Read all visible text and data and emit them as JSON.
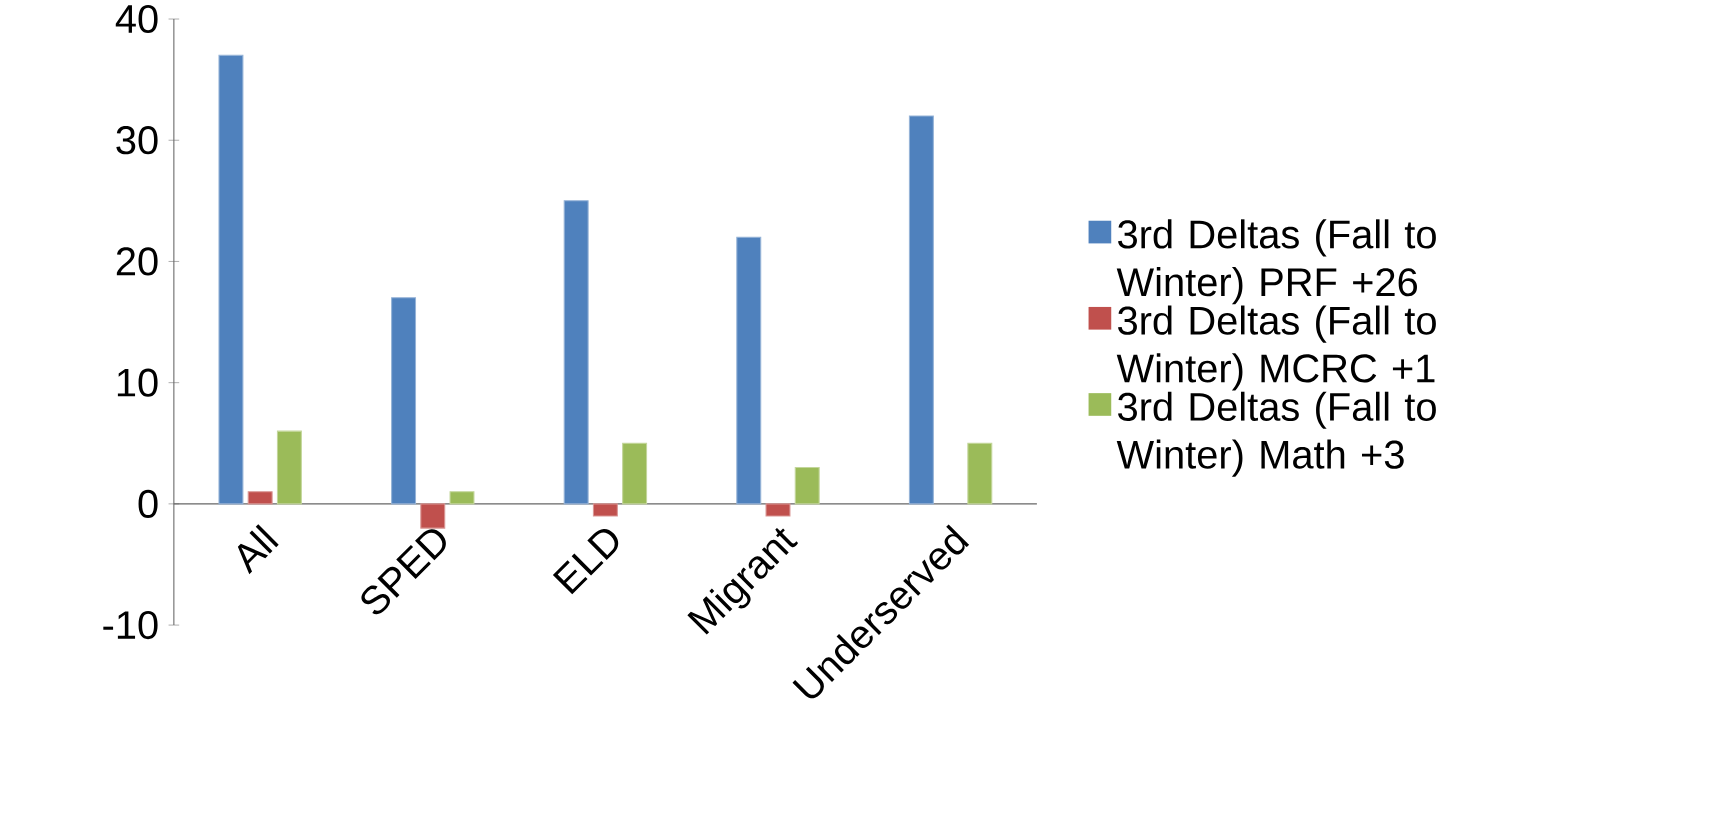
{
  "chart_data": {
    "type": "bar",
    "categories": [
      "All",
      "SPED",
      "ELD",
      "Migrant",
      "Underserved"
    ],
    "series": [
      {
        "name": "3rd Deltas (Fall to Winter) PRF +26",
        "color": "#4f81bd",
        "values": [
          37,
          17,
          25,
          22,
          32
        ]
      },
      {
        "name": "3rd Deltas (Fall to Winter) MCRC +1",
        "color": "#c0504d",
        "values": [
          1,
          -2,
          -1,
          -1,
          null
        ]
      },
      {
        "name": "3rd Deltas (Fall to Winter) Math  +3",
        "color": "#9bbb59",
        "values": [
          6,
          1,
          5,
          3,
          5
        ]
      }
    ],
    "ylim": [
      -10,
      40
    ],
    "yticks": [
      -10,
      0,
      10,
      20,
      30,
      40
    ],
    "grid": false,
    "legend": "right"
  }
}
